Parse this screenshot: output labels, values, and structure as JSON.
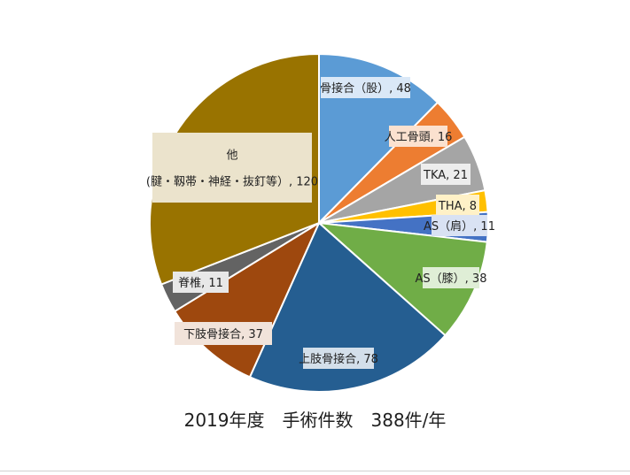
{
  "chart_data": {
    "type": "pie",
    "title": "2019年度　手術件数　388件/年",
    "total": 388,
    "start_angle_deg": 0,
    "direction": "clockwise",
    "slices": [
      {
        "name": "骨接合（股）",
        "value": 48,
        "color": "#5b9bd5",
        "label_lines": [
          "骨接合（股）, 48"
        ],
        "label_bg": "#dae8f7"
      },
      {
        "name": "人工骨頭",
        "value": 16,
        "color": "#ed7d31",
        "label_lines": [
          "人工骨頭, 16"
        ],
        "label_bg": "#fbe1cf"
      },
      {
        "name": "TKA",
        "value": 21,
        "color": "#a5a5a5",
        "label_lines": [
          "TKA, 21"
        ],
        "label_bg": "#ededed"
      },
      {
        "name": "THA",
        "value": 8,
        "color": "#ffc000",
        "label_lines": [
          "THA, 8"
        ],
        "label_bg": "#fff1c7"
      },
      {
        "name": "AS（肩）",
        "value": 11,
        "color": "#4472c4",
        "label_lines": [
          "AS（肩）, 11"
        ],
        "label_bg": "#d9e2f3"
      },
      {
        "name": "AS（膝）",
        "value": 38,
        "color": "#70ad47",
        "label_lines": [
          "AS（膝）, 38"
        ],
        "label_bg": "#dfeed6"
      },
      {
        "name": "上肢骨接合",
        "value": 78,
        "color": "#255e91",
        "label_lines": [
          "上肢骨接合, 78"
        ],
        "label_bg": "#d3dfea"
      },
      {
        "name": "下肢骨接合",
        "value": 37,
        "color": "#9e480e",
        "label_lines": [
          "下肢骨接合, 37"
        ],
        "label_bg": "#f1e3da"
      },
      {
        "name": "脊椎",
        "value": 11,
        "color": "#636363",
        "label_lines": [
          "脊椎, 11"
        ],
        "label_bg": "#e8e8e8"
      },
      {
        "name": "他（腱・靱帯・神経・抜釘等）",
        "value": 120,
        "color": "#997300",
        "label_lines": [
          "他",
          "(腱・靱帯・神経・抜釘等）, 120"
        ],
        "label_bg": "#ebe3cc"
      }
    ]
  }
}
